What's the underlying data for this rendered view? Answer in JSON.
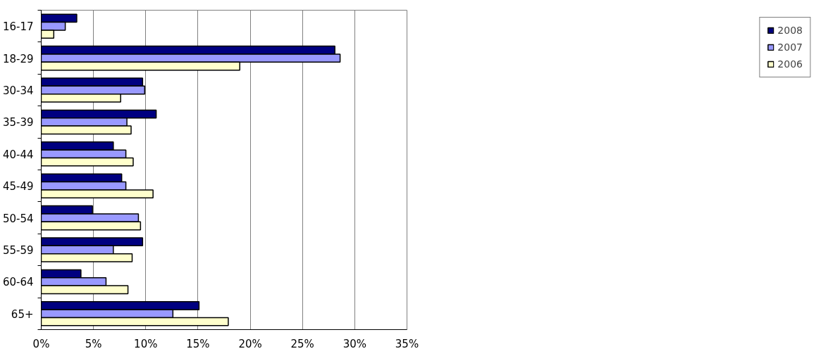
{
  "chart_data": {
    "type": "bar",
    "orientation": "horizontal",
    "categories": [
      "16-17",
      "18-29",
      "30-34",
      "35-39",
      "40-44",
      "45-49",
      "50-54",
      "55-59",
      "60-64",
      "65+"
    ],
    "series": [
      {
        "name": "2008",
        "color": "#000080",
        "values": [
          3.4,
          28.1,
          9.7,
          11.0,
          6.9,
          7.7,
          4.9,
          9.7,
          3.8,
          15.1
        ]
      },
      {
        "name": "2007",
        "color": "#9999ff",
        "values": [
          2.3,
          28.6,
          9.9,
          8.2,
          8.1,
          8.1,
          9.3,
          6.9,
          6.2,
          12.6
        ]
      },
      {
        "name": "2006",
        "color": "#ffffcc",
        "values": [
          1.2,
          19.0,
          7.6,
          8.6,
          8.8,
          10.7,
          9.5,
          8.7,
          8.3,
          17.9
        ]
      }
    ],
    "xlim": [
      0,
      35
    ],
    "xticks": [
      {
        "value": 0,
        "label": "0%"
      },
      {
        "value": 5,
        "label": "5%"
      },
      {
        "value": 10,
        "label": "10%"
      },
      {
        "value": 15,
        "label": "15%"
      },
      {
        "value": 20,
        "label": "20%"
      },
      {
        "value": 25,
        "label": "25%"
      },
      {
        "value": 30,
        "label": "30%"
      },
      {
        "value": 35,
        "label": "35%"
      }
    ],
    "grid": "x",
    "legend": "right"
  }
}
